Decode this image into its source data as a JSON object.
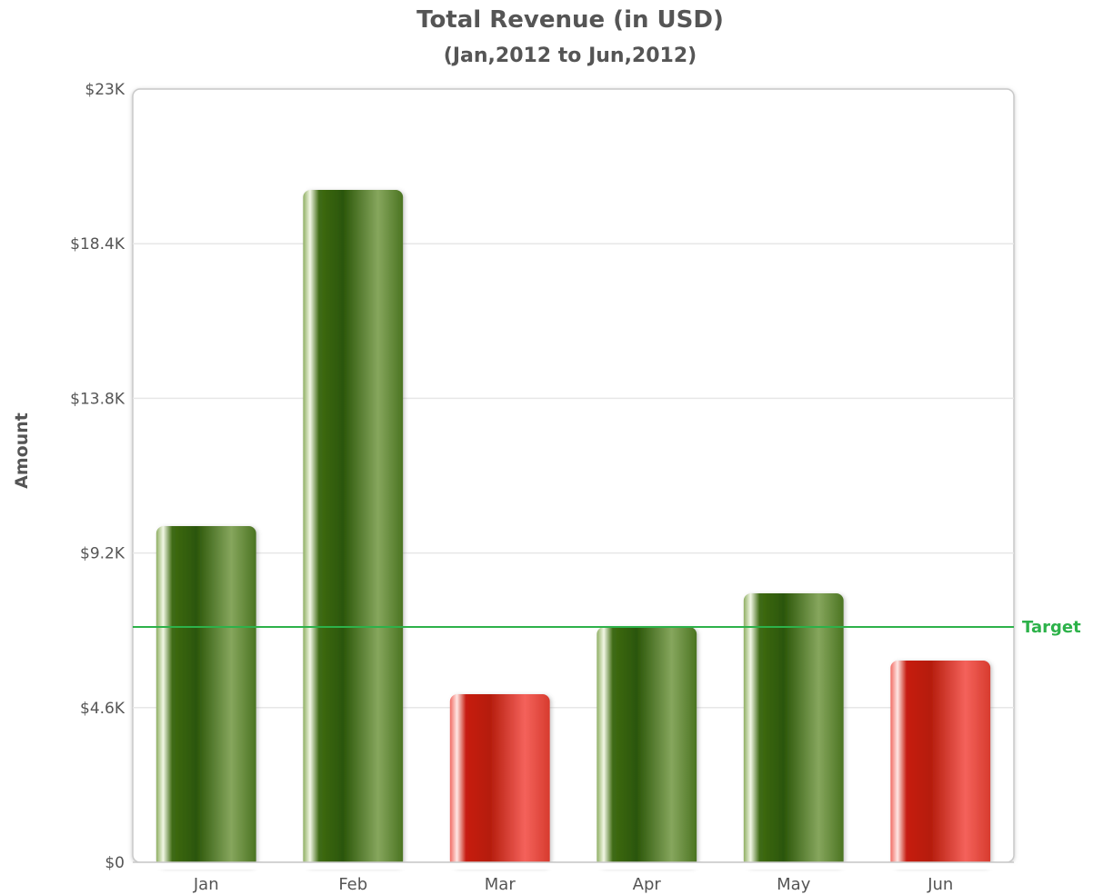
{
  "chart_data": {
    "type": "bar",
    "title": "Total Revenue (in USD)",
    "subtitle": "(Jan,2012 to Jun,2012)",
    "xlabel": "",
    "ylabel": "Amount",
    "categories": [
      "Jan",
      "Feb",
      "Mar",
      "Apr",
      "May",
      "Jun"
    ],
    "values": [
      10000,
      20000,
      5000,
      7000,
      8000,
      6000
    ],
    "ylim": [
      0,
      23000
    ],
    "yticks": [
      0,
      4600,
      9200,
      13800,
      18400,
      23000
    ],
    "ytick_labels": [
      "$0",
      "$4.6K",
      "$9.2K",
      "$13.8K",
      "$18.4K",
      "$23K"
    ],
    "grid": true,
    "trendline": {
      "label": "Target",
      "value": 7000,
      "color": "#2db24a"
    },
    "bar_colors": {
      "above_target": "#3d6b12",
      "below_target": "#d9261c"
    }
  }
}
